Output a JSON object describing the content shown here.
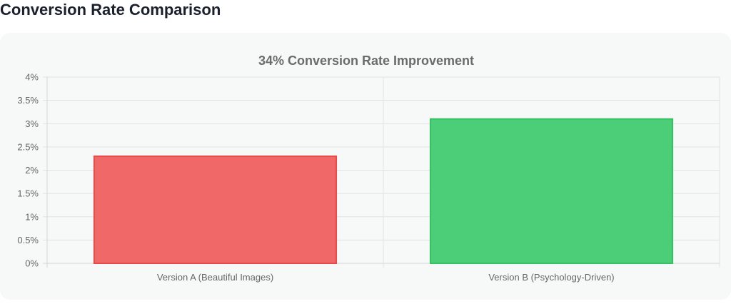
{
  "page": {
    "heading": "Conversion Rate Comparison"
  },
  "chart_data": {
    "type": "bar",
    "title": "34% Conversion Rate Improvement",
    "categories": [
      "Version A (Beautiful Images)",
      "Version B (Psychology-Driven)"
    ],
    "values": [
      2.3,
      3.1
    ],
    "value_unit": "%",
    "ylim": [
      0,
      4
    ],
    "y_ticks": [
      0,
      0.5,
      1,
      1.5,
      2,
      2.5,
      3,
      3.5,
      4
    ],
    "y_tick_labels": [
      "0%",
      "0.5%",
      "1%",
      "1.5%",
      "2%",
      "2.5%",
      "3%",
      "3.5%",
      "4%"
    ],
    "grid": true,
    "legend": "none",
    "colors": {
      "fills": [
        "#f06868",
        "#4ccd78"
      ],
      "borders": [
        "#e84a4a",
        "#38c066"
      ]
    }
  }
}
